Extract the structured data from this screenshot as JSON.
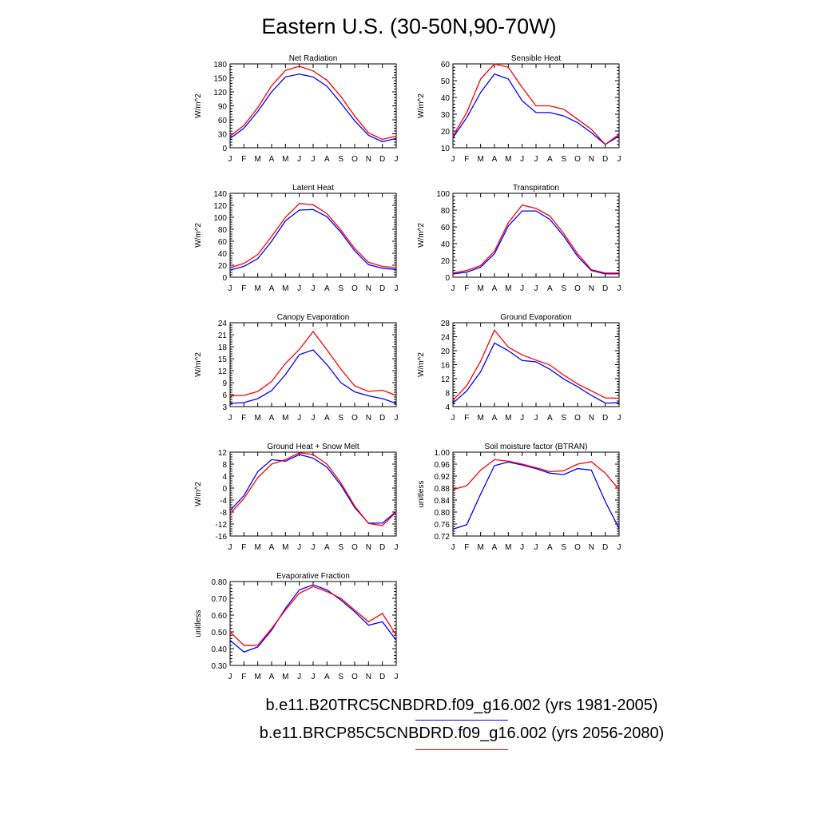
{
  "title": "Eastern U.S. (30-50N,90-70W)",
  "colors": {
    "series_a": "#0000ff",
    "series_b": "#ff0000"
  },
  "legend": [
    {
      "label": "b.e11.B20TRC5CNBDRD.f09_g16.002 (yrs 1981-2005)",
      "color": "#0000ff"
    },
    {
      "label": "b.e11.BRCP85C5CNBDRD.f09_g16.002 (yrs 2056-2080)",
      "color": "#ff0000"
    }
  ],
  "chart_data": [
    {
      "type": "line",
      "title": "Net Radiation",
      "ylabel": "W/m^2",
      "x": [
        "J",
        "F",
        "M",
        "A",
        "M",
        "J",
        "J",
        "A",
        "S",
        "O",
        "N",
        "D",
        "J"
      ],
      "ylim": [
        0,
        180
      ],
      "yticks": [
        "0",
        "30",
        "60",
        "90",
        "120",
        "150",
        "180"
      ],
      "series": [
        {
          "values": [
            20,
            42,
            78,
            120,
            152,
            158,
            152,
            132,
            96,
            58,
            27,
            13,
            20
          ]
        },
        {
          "values": [
            25,
            48,
            86,
            133,
            166,
            175,
            165,
            145,
            110,
            68,
            32,
            18,
            25
          ]
        }
      ]
    },
    {
      "type": "line",
      "title": "Sensible Heat",
      "ylabel": "W/m^2",
      "x": [
        "J",
        "F",
        "M",
        "A",
        "M",
        "J",
        "J",
        "A",
        "S",
        "O",
        "N",
        "D",
        "J"
      ],
      "ylim": [
        10,
        60
      ],
      "yticks": [
        "10",
        "20",
        "30",
        "40",
        "50",
        "60"
      ],
      "series": [
        {
          "values": [
            16,
            28,
            43,
            54,
            51,
            38,
            31,
            31,
            29,
            25,
            19,
            12,
            17
          ]
        },
        {
          "values": [
            17,
            31,
            51,
            60,
            58,
            46,
            35,
            35,
            33,
            27,
            21,
            12,
            18
          ]
        }
      ]
    },
    {
      "type": "line",
      "title": "Latent Heat",
      "ylabel": "W/m^2",
      "x": [
        "J",
        "F",
        "M",
        "A",
        "M",
        "J",
        "J",
        "A",
        "S",
        "O",
        "N",
        "D",
        "J"
      ],
      "ylim": [
        0,
        140
      ],
      "yticks": [
        "0",
        "20",
        "40",
        "60",
        "80",
        "100",
        "120",
        "140"
      ],
      "series": [
        {
          "values": [
            12,
            18,
            31,
            60,
            94,
            112,
            113,
            101,
            75,
            44,
            21,
            15,
            13
          ]
        },
        {
          "values": [
            16,
            23,
            38,
            68,
            100,
            123,
            121,
            106,
            79,
            48,
            25,
            18,
            16
          ]
        }
      ]
    },
    {
      "type": "line",
      "title": "Transpiration",
      "ylabel": "W/m^2",
      "x": [
        "J",
        "F",
        "M",
        "A",
        "M",
        "J",
        "J",
        "A",
        "S",
        "O",
        "N",
        "D",
        "J"
      ],
      "ylim": [
        0,
        100
      ],
      "yticks": [
        "0",
        "20",
        "40",
        "60",
        "80",
        "100"
      ],
      "series": [
        {
          "values": [
            4,
            6,
            12,
            28,
            61,
            79,
            79,
            69,
            49,
            25,
            8,
            4,
            4
          ]
        },
        {
          "values": [
            5,
            8,
            14,
            31,
            65,
            86,
            82,
            73,
            52,
            28,
            9,
            5,
            5
          ]
        }
      ]
    },
    {
      "type": "line",
      "title": "Canopy Evaporation",
      "ylabel": "W/m^2",
      "x": [
        "J",
        "F",
        "M",
        "A",
        "M",
        "J",
        "J",
        "A",
        "S",
        "O",
        "N",
        "D",
        "J"
      ],
      "ylim": [
        3,
        24
      ],
      "yticks": [
        "3",
        "6",
        "9",
        "12",
        "15",
        "18",
        "21",
        "24"
      ],
      "series": [
        {
          "values": [
            3.8,
            4.0,
            5.0,
            7.0,
            11.0,
            16.0,
            17.2,
            13.5,
            9.0,
            6.7,
            5.7,
            5.0,
            3.8
          ]
        },
        {
          "values": [
            5.7,
            5.8,
            6.8,
            9.3,
            13.8,
            17.3,
            21.8,
            17.2,
            12.4,
            8.2,
            6.8,
            7.1,
            5.8
          ]
        }
      ]
    },
    {
      "type": "line",
      "title": "Ground Evaporation",
      "ylabel": "W/m^2",
      "x": [
        "J",
        "F",
        "M",
        "A",
        "M",
        "J",
        "J",
        "A",
        "S",
        "O",
        "N",
        "D",
        "J"
      ],
      "ylim": [
        4,
        28
      ],
      "yticks": [
        "4",
        "8",
        "12",
        "16",
        "20",
        "24",
        "28"
      ],
      "series": [
        {
          "values": [
            5.0,
            8.5,
            14.0,
            22.2,
            20.0,
            17.2,
            16.8,
            14.7,
            11.9,
            9.7,
            7.2,
            5.0,
            5.1
          ]
        },
        {
          "values": [
            5.8,
            10.0,
            17.0,
            25.9,
            21.0,
            18.8,
            17.3,
            15.9,
            13.0,
            10.5,
            8.5,
            6.5,
            6.4
          ]
        }
      ]
    },
    {
      "type": "line",
      "title": "Ground Heat + Snow Melt",
      "ylabel": "W/m^2",
      "x": [
        "J",
        "F",
        "M",
        "A",
        "M",
        "J",
        "J",
        "A",
        "S",
        "O",
        "N",
        "D",
        "J"
      ],
      "ylim": [
        -16,
        12
      ],
      "yticks": [
        "-16",
        "-12",
        "-8",
        "-4",
        "0",
        "4",
        "8",
        "12"
      ],
      "series": [
        {
          "values": [
            -7.5,
            -2.5,
            5.5,
            9.5,
            9.0,
            11.2,
            10.0,
            7.0,
            1.0,
            -6.5,
            -11.7,
            -11.7,
            -7.8
          ]
        },
        {
          "values": [
            -8.5,
            -3.5,
            3.5,
            8.0,
            9.5,
            11.8,
            11.2,
            8.0,
            1.8,
            -6.0,
            -11.8,
            -12.5,
            -8.0
          ]
        }
      ]
    },
    {
      "type": "line",
      "title": "Soil moisture factor (BTRAN)",
      "ylabel": "unitless",
      "x": [
        "J",
        "F",
        "M",
        "A",
        "M",
        "J",
        "J",
        "A",
        "S",
        "O",
        "N",
        "D",
        "J"
      ],
      "ylim": [
        0.72,
        1.0
      ],
      "yticks": [
        "0.72",
        "0.76",
        "0.80",
        "0.84",
        "0.88",
        "0.92",
        "0.96",
        "1.00"
      ],
      "series": [
        {
          "values": [
            0.743,
            0.758,
            0.86,
            0.955,
            0.967,
            0.957,
            0.945,
            0.93,
            0.925,
            0.945,
            0.94,
            0.835,
            0.745
          ]
        },
        {
          "values": [
            0.875,
            0.888,
            0.94,
            0.975,
            0.97,
            0.96,
            0.948,
            0.935,
            0.938,
            0.96,
            0.968,
            0.93,
            0.875
          ]
        }
      ]
    },
    {
      "type": "line",
      "title": "Evaporative Fraction",
      "ylabel": "unitless",
      "x": [
        "J",
        "F",
        "M",
        "A",
        "M",
        "J",
        "J",
        "A",
        "S",
        "O",
        "N",
        "D",
        "J"
      ],
      "ylim": [
        0.3,
        0.8
      ],
      "yticks": [
        "0.30",
        "0.40",
        "0.50",
        "0.60",
        "0.70",
        "0.80"
      ],
      "series": [
        {
          "values": [
            0.45,
            0.38,
            0.41,
            0.51,
            0.64,
            0.75,
            0.78,
            0.75,
            0.69,
            0.62,
            0.54,
            0.56,
            0.45
          ]
        },
        {
          "values": [
            0.5,
            0.42,
            0.42,
            0.52,
            0.63,
            0.73,
            0.77,
            0.74,
            0.7,
            0.63,
            0.56,
            0.61,
            0.48
          ]
        }
      ]
    }
  ]
}
